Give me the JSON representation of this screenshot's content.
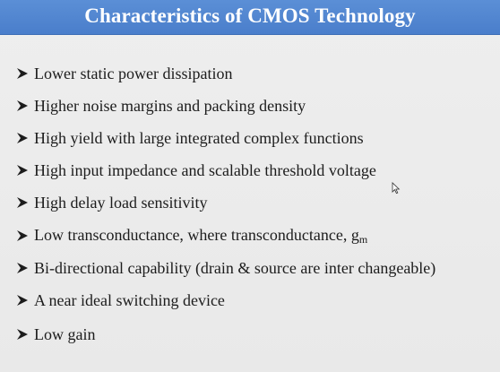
{
  "slide": {
    "title": "Characteristics of CMOS Technology",
    "bullets": [
      {
        "text": "Lower static power dissipation"
      },
      {
        "text": "Higher noise margins and packing density"
      },
      {
        "text": "High yield with large integrated complex functions"
      },
      {
        "text": "High input impedance  and scalable threshold voltage"
      },
      {
        "text": "High delay load sensitivity"
      },
      {
        "text": "Low transconductance, where transconductance, g",
        "sub": "m"
      },
      {
        "text": "Bi-directional capability (drain & source are inter changeable)"
      },
      {
        "text": "A near ideal switching device"
      },
      {
        "text": "Low gain"
      }
    ],
    "bullet_icon": "arrowhead-bullet-icon",
    "cursor_icon": "mouse-pointer-icon"
  },
  "colors": {
    "title_bar": "#4f86d0",
    "title_text": "#ffffff",
    "background": "#ebebeb",
    "body_text": "#1c1c1c"
  }
}
